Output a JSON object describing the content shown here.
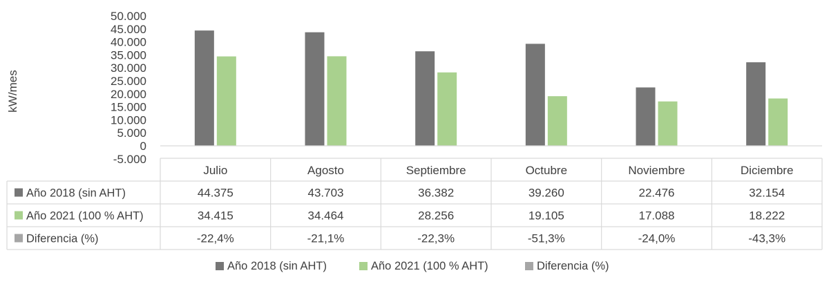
{
  "chart_data": {
    "type": "bar",
    "ylabel": "kW/mes",
    "ylim": [
      -5000,
      50000
    ],
    "yticks": [
      "50.000",
      "45.000",
      "40.000",
      "35.000",
      "30.000",
      "25.000",
      "20.000",
      "15.000",
      "10.000",
      "5.000",
      "0",
      "-5.000"
    ],
    "categories": [
      "Julio",
      "Agosto",
      "Septiembre",
      "Octubre",
      "Noviembre",
      "Diciembre"
    ],
    "series": [
      {
        "name": "Año 2018 (sin AHT)",
        "color": "#767676",
        "values": [
          44375,
          43703,
          36382,
          39260,
          22476,
          32154
        ],
        "labels": [
          "44.375",
          "43.703",
          "36.382",
          "39.260",
          "22.476",
          "32.154"
        ]
      },
      {
        "name": "Año 2021 (100 % AHT)",
        "color": "#a9d18e",
        "values": [
          34415,
          34464,
          28256,
          19105,
          17088,
          18222
        ],
        "labels": [
          "34.415",
          "34.464",
          "28.256",
          "19.105",
          "17.088",
          "18.222"
        ]
      },
      {
        "name": "Diferencia (%)",
        "color": "#a6a6a6",
        "values": [
          -22.4,
          -21.1,
          -22.3,
          -51.3,
          -24.0,
          -43.3
        ],
        "labels": [
          "-22,4%",
          "-21,1%",
          "-22,3%",
          "-51,3%",
          "-24,0%",
          "-43,3%"
        ]
      }
    ],
    "legend_position": "bottom",
    "data_table": true,
    "grid": false
  }
}
